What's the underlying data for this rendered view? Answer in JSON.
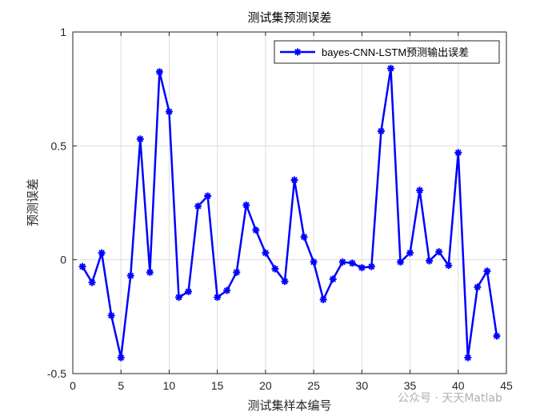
{
  "chart_data": {
    "type": "line",
    "title": "测试集预测误差",
    "xlabel": "测试集样本编号",
    "ylabel": "预测误差",
    "xlim": [
      0,
      45
    ],
    "ylim": [
      -0.5,
      1
    ],
    "xticks": [
      "0",
      "5",
      "10",
      "15",
      "20",
      "25",
      "30",
      "35",
      "40",
      "45"
    ],
    "yticks": [
      "-0.5",
      "0",
      "0.5",
      "1"
    ],
    "grid": true,
    "legend_position": "top-right",
    "series": [
      {
        "name": "bayes-CNN-LSTM预测输出误差",
        "color": "#0000ff",
        "marker": "asterisk",
        "x": [
          1,
          2,
          3,
          4,
          5,
          6,
          7,
          8,
          9,
          10,
          11,
          12,
          13,
          14,
          15,
          16,
          17,
          18,
          19,
          20,
          21,
          22,
          23,
          24,
          25,
          26,
          27,
          28,
          29,
          30,
          31,
          32,
          33,
          34,
          35,
          36,
          37,
          38,
          39,
          40,
          41,
          42,
          43,
          44
        ],
        "values": [
          -0.03,
          -0.1,
          0.03,
          -0.245,
          -0.43,
          -0.07,
          0.53,
          -0.055,
          0.825,
          0.65,
          -0.165,
          -0.14,
          0.235,
          0.28,
          -0.165,
          -0.135,
          -0.055,
          0.24,
          0.13,
          0.03,
          -0.04,
          -0.095,
          0.35,
          0.1,
          -0.01,
          -0.175,
          -0.085,
          -0.01,
          -0.015,
          -0.035,
          -0.03,
          0.565,
          0.84,
          -0.01,
          0.03,
          0.305,
          -0.005,
          0.035,
          -0.025,
          0.47,
          -0.43,
          -0.12,
          -0.05,
          -0.335
        ]
      }
    ]
  },
  "watermark": "公众号 · 天天Matlab"
}
